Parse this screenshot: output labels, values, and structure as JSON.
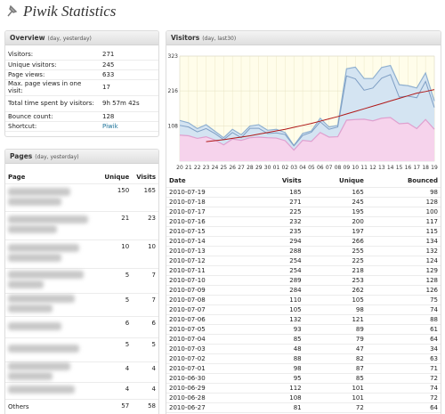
{
  "header": {
    "title": "Piwik Statistics"
  },
  "overview": {
    "title": "Overview",
    "subtitle": "(day, yesterday)",
    "rows": [
      [
        "Visitors:",
        "271"
      ],
      [
        "Unique visitors:",
        "245"
      ],
      [
        "Page views:",
        "633"
      ],
      [
        "Max. page views in one visit:",
        "17"
      ],
      [
        "Total time spent by visitors:",
        "9h 57m 42s"
      ],
      [
        "Bounce count:",
        "128"
      ],
      [
        "Shortcut:",
        "Piwik"
      ]
    ]
  },
  "pages": {
    "title": "Pages",
    "subtitle": "(day, yesterday)",
    "columns": [
      "Page",
      "Unique",
      "Visits"
    ],
    "rows": [
      {
        "unique": 150,
        "visits": 165
      },
      {
        "unique": 21,
        "visits": 23
      },
      {
        "unique": 10,
        "visits": 10
      },
      {
        "unique": 5,
        "visits": 7
      },
      {
        "unique": 5,
        "visits": 7
      },
      {
        "unique": 6,
        "visits": 6
      },
      {
        "unique": 5,
        "visits": 5
      },
      {
        "unique": 4,
        "visits": 4
      },
      {
        "unique": 4,
        "visits": 4
      },
      {
        "page": "Others",
        "unique": 57,
        "visits": 58
      }
    ]
  },
  "visitors": {
    "title": "Visitors",
    "subtitle": "(day, last30)",
    "table": {
      "columns": [
        "Date",
        "Visits",
        "Unique",
        "Bounced"
      ],
      "rows": [
        [
          "2010-07-19",
          185,
          165,
          98
        ],
        [
          "2010-07-18",
          271,
          245,
          128
        ],
        [
          "2010-07-17",
          225,
          195,
          100
        ],
        [
          "2010-07-16",
          232,
          200,
          117
        ],
        [
          "2010-07-15",
          235,
          197,
          115
        ],
        [
          "2010-07-14",
          294,
          266,
          134
        ],
        [
          "2010-07-13",
          288,
          255,
          132
        ],
        [
          "2010-07-12",
          254,
          225,
          124
        ],
        [
          "2010-07-11",
          254,
          218,
          129
        ],
        [
          "2010-07-10",
          289,
          253,
          128
        ],
        [
          "2010-07-09",
          284,
          262,
          126
        ],
        [
          "2010-07-08",
          110,
          105,
          75
        ],
        [
          "2010-07-07",
          105,
          98,
          74
        ],
        [
          "2010-07-06",
          132,
          121,
          88
        ],
        [
          "2010-07-05",
          93,
          89,
          61
        ],
        [
          "2010-07-04",
          85,
          79,
          64
        ],
        [
          "2010-07-03",
          48,
          47,
          34
        ],
        [
          "2010-07-02",
          88,
          82,
          63
        ],
        [
          "2010-07-01",
          98,
          87,
          71
        ],
        [
          "2010-06-30",
          95,
          85,
          72
        ],
        [
          "2010-06-29",
          112,
          101,
          74
        ],
        [
          "2010-06-28",
          108,
          101,
          72
        ],
        [
          "2010-06-27",
          81,
          72,
          64
        ]
      ]
    }
  },
  "chart_data": {
    "type": "area",
    "categories": [
      "20",
      "21",
      "22",
      "23",
      "24",
      "25",
      "26",
      "27",
      "28",
      "29",
      "30",
      "01",
      "02",
      "03",
      "04",
      "05",
      "06",
      "07",
      "08",
      "09",
      "10",
      "11",
      "12",
      "13",
      "14",
      "15",
      "16",
      "17",
      "18",
      "19"
    ],
    "ylim": [
      0,
      323
    ],
    "yticks": [
      108,
      216,
      323
    ],
    "grid": true,
    "series": [
      {
        "color": "#8fb0d0",
        "fill": "#d4e4f2",
        "values": [
          125,
          118,
          100,
          112,
          92,
          72,
          98,
          81,
          108,
          112,
          95,
          98,
          88,
          48,
          85,
          93,
          132,
          105,
          110,
          284,
          289,
          254,
          254,
          288,
          294,
          235,
          232,
          225,
          271,
          185
        ]
      },
      {
        "color": "#7f9fc4",
        "values": [
          110,
          105,
          90,
          100,
          85,
          66,
          88,
          72,
          101,
          101,
          85,
          87,
          82,
          47,
          79,
          89,
          121,
          98,
          105,
          262,
          253,
          218,
          225,
          255,
          266,
          197,
          200,
          195,
          245,
          165
        ]
      },
      {
        "color": "#dfa0cf",
        "fill": "#f6d3ec",
        "values": [
          80,
          78,
          70,
          75,
          65,
          50,
          68,
          64,
          72,
          74,
          72,
          71,
          63,
          34,
          64,
          61,
          88,
          74,
          75,
          126,
          128,
          129,
          124,
          132,
          134,
          115,
          117,
          100,
          128,
          98
        ]
      },
      {
        "color": "#b01818",
        "values": [
          null,
          null,
          null,
          60,
          63,
          66,
          70,
          74,
          78,
          83,
          88,
          93,
          98,
          104,
          110,
          116,
          123,
          130,
          137,
          145,
          153,
          161,
          169,
          177,
          185,
          193,
          201,
          209,
          214,
          220
        ]
      }
    ]
  }
}
